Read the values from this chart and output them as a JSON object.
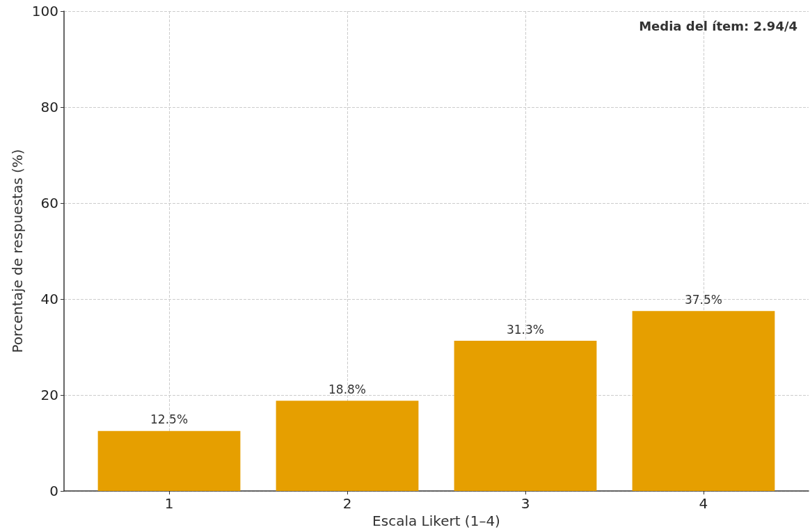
{
  "chart_data": {
    "type": "bar",
    "xlabel": "Escala Likert (1–4)",
    "ylabel": "Porcentaje de respuestas (%)",
    "x": [
      1,
      2,
      3,
      4
    ],
    "values": [
      12.5,
      18.8,
      31.3,
      37.5
    ],
    "value_labels": [
      "12.5%",
      "18.8%",
      "31.3%",
      "37.5%"
    ],
    "color": "#e69f00",
    "xlim": [
      0.41,
      4.59
    ],
    "xticks": [
      1,
      2,
      3,
      4
    ],
    "ylim": [
      0,
      100
    ],
    "yticks": [
      0,
      20,
      40,
      60,
      80,
      100
    ],
    "grid": true,
    "annotations": [
      "Media del ítem: 2.94/4"
    ]
  }
}
